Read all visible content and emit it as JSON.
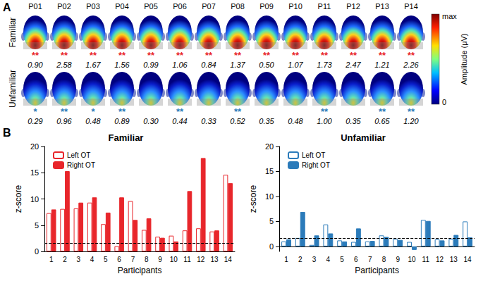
{
  "panel_labels": [
    "A",
    "B"
  ],
  "topomaps": {
    "participants": [
      "P01",
      "P02",
      "P03",
      "P04",
      "P05",
      "P06",
      "P07",
      "P08",
      "P09",
      "P10",
      "P11",
      "P12",
      "P13",
      "P14"
    ],
    "rows": [
      {
        "name": "Familiar",
        "color": "#e8262b",
        "stars": [
          "**",
          "**",
          "**",
          "**",
          "**",
          "**",
          "**",
          "**",
          "**",
          "**",
          "**",
          "**",
          "**",
          "**"
        ],
        "values": [
          0.9,
          2.58,
          1.67,
          1.56,
          0.99,
          1.06,
          0.84,
          1.37,
          0.5,
          1.07,
          1.73,
          2.47,
          1.21,
          2.26
        ],
        "value_labels": [
          "0.90",
          "2.58",
          "1.67",
          "1.56",
          "0.99",
          "1.06",
          "0.84",
          "1.37",
          "0.50",
          "1.07",
          "1.73",
          "2.47",
          "1.21",
          "2.26"
        ]
      },
      {
        "name": "Unfamiliar",
        "color": "#2b7bba",
        "stars": [
          "*",
          "**",
          "*",
          "**",
          null,
          "**",
          null,
          "**",
          null,
          null,
          "**",
          null,
          "**",
          "**"
        ],
        "values": [
          0.29,
          0.96,
          0.48,
          0.89,
          0.3,
          0.44,
          0.33,
          0.52,
          0.35,
          0.48,
          1.0,
          0.35,
          0.65,
          1.2
        ],
        "value_labels": [
          "0.29",
          "0.96",
          "0.48",
          "0.89",
          "0.30",
          "0.44",
          "0.33",
          "0.52",
          "0.35",
          "0.48",
          "1.00",
          "0.35",
          "0.65",
          "1.20"
        ]
      }
    ],
    "colorbar": {
      "title": "Amplitude (μV)",
      "max_label": "max",
      "min": 0
    }
  },
  "chart_data": [
    {
      "type": "bar",
      "title": "Familiar",
      "categories": [
        "1",
        "2",
        "3",
        "4",
        "5",
        "6",
        "7",
        "8",
        "9",
        "10",
        "11",
        "12",
        "13",
        "14"
      ],
      "x_label": "Participants",
      "y_label": "z-score",
      "ylim": [
        0,
        20
      ],
      "yticks": [
        0,
        5,
        10,
        15,
        20
      ],
      "grid": false,
      "legend": "upper left",
      "threshold": {
        "value": 1.64,
        "line_style": "dashed"
      },
      "series": [
        {
          "name": "Left OT",
          "color": "#e8262b",
          "values": [
            7.3,
            8.1,
            8.2,
            9.3,
            5.2,
            1.0,
            9.6,
            4.1,
            2.8,
            3.0,
            4.0,
            4.4,
            3.8,
            14.6
          ]
        },
        {
          "name": "Right OT",
          "color": "#e8262b",
          "values": [
            8.0,
            15.3,
            9.3,
            10.3,
            7.4,
            10.3,
            6.0,
            6.3,
            2.6,
            1.9,
            11.5,
            17.8,
            4.0,
            13.0
          ]
        }
      ]
    },
    {
      "type": "bar",
      "title": "Unfamiliar",
      "categories": [
        "1",
        "2",
        "3",
        "4",
        "5",
        "6",
        "7",
        "8",
        "9",
        "10",
        "11",
        "12",
        "13",
        "14"
      ],
      "x_label": "Participants",
      "y_label": "z-score",
      "ylim": [
        -1,
        20
      ],
      "yticks": [
        0,
        5,
        10,
        15,
        20
      ],
      "grid": false,
      "legend": "upper left",
      "threshold": {
        "value": 1.64,
        "line_style": "dashed"
      },
      "series": [
        {
          "name": "Left OT",
          "color": "#2b7bba",
          "values": [
            1.0,
            1.7,
            0.3,
            4.4,
            1.2,
            0.9,
            1.0,
            2.2,
            1.5,
            0.9,
            5.3,
            1.4,
            1.5,
            5.0
          ]
        },
        {
          "name": "Right OT",
          "color": "#2b7bba",
          "values": [
            1.4,
            6.9,
            2.2,
            2.6,
            1.0,
            3.6,
            1.1,
            1.9,
            1.3,
            -0.7,
            5.1,
            1.2,
            2.3,
            1.8
          ]
        }
      ]
    }
  ]
}
